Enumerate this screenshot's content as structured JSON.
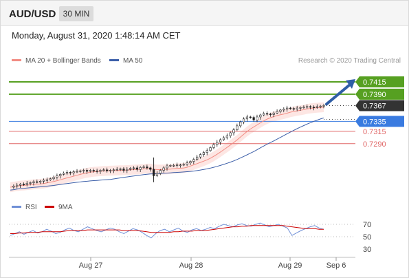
{
  "header": {
    "pair": "AUD/USD",
    "interval": "30 MIN"
  },
  "timestamp": "Monday, August 31, 2020 1:48:14 AM CET",
  "legend": {
    "ma20": {
      "label": "MA 20 + Bollinger Bands",
      "color": "#f28b82"
    },
    "ma50": {
      "label": "MA 50",
      "color": "#3b5ea8"
    },
    "credit": "Research © 2020 Trading Central"
  },
  "rsi_legend": {
    "rsi": {
      "label": "RSI",
      "color": "#6f8fd6"
    },
    "ma9": {
      "label": "9MA",
      "color": "#cc0000"
    }
  },
  "colors": {
    "resistance": "#56a021",
    "support": "#3a7be0",
    "support_dashed": "#e06666",
    "current": "#333333",
    "arrow": "#2f5ea6",
    "candle": "#1f1f1f",
    "band": "#fde3e0"
  },
  "chart_data": [
    {
      "type": "candlestick",
      "ylim": [
        0.7195,
        0.744
      ],
      "x_ticks": [
        "Aug 27",
        "Aug 28",
        "Aug 29",
        "Sep 6"
      ],
      "levels": [
        {
          "label": "0.7415",
          "value": 0.7415,
          "kind": "resistance"
        },
        {
          "label": "0.7390",
          "value": 0.739,
          "kind": "resistance"
        },
        {
          "label": "0.7367",
          "value": 0.7367,
          "kind": "current"
        },
        {
          "label": "0.7335",
          "value": 0.7335,
          "kind": "pivot"
        },
        {
          "label": "0.7315",
          "value": 0.7315,
          "kind": "support"
        },
        {
          "label": "0.7290",
          "value": 0.729,
          "kind": "support"
        }
      ],
      "price_series": [
        0.7202,
        0.7204,
        0.7206,
        0.7208,
        0.7207,
        0.721,
        0.7211,
        0.7213,
        0.7212,
        0.7214,
        0.7216,
        0.7217,
        0.7219,
        0.7222,
        0.7225,
        0.7228,
        0.723,
        0.7232,
        0.7231,
        0.7233,
        0.7234,
        0.7235,
        0.7236,
        0.7234,
        0.7236,
        0.7235,
        0.7234,
        0.7236,
        0.7237,
        0.7235,
        0.7236,
        0.7237,
        0.7238,
        0.7239,
        0.7236,
        0.7238,
        0.724,
        0.7241,
        0.7238,
        0.7242,
        0.7243,
        0.7241,
        0.7238,
        0.7225,
        0.723,
        0.7236,
        0.7241,
        0.7245,
        0.7246,
        0.7246,
        0.7247,
        0.7247,
        0.7248,
        0.7251,
        0.7254,
        0.7258,
        0.7263,
        0.7268,
        0.7272,
        0.7276,
        0.7282,
        0.7288,
        0.7293,
        0.7298,
        0.7302,
        0.7306,
        0.7312,
        0.7318,
        0.7326,
        0.7334,
        0.734,
        0.7344,
        0.7343,
        0.7338,
        0.7344,
        0.7348,
        0.7351,
        0.735,
        0.7349,
        0.7352,
        0.7355,
        0.7358,
        0.736,
        0.7362,
        0.7361,
        0.736,
        0.7362,
        0.7363,
        0.7364,
        0.7365,
        0.7364,
        0.7363,
        0.7365,
        0.7366,
        0.7367
      ],
      "arrow": {
        "from": 0.737,
        "to": 0.7415
      }
    },
    {
      "type": "line",
      "title": "RSI",
      "y_ticks": [
        70,
        50,
        30
      ],
      "ylim": [
        20,
        80
      ],
      "series": [
        {
          "name": "RSI",
          "values": [
            52,
            55,
            58,
            54,
            57,
            60,
            56,
            58,
            62,
            59,
            55,
            57,
            61,
            64,
            60,
            58,
            62,
            66,
            63,
            60,
            58,
            61,
            64,
            62,
            58,
            55,
            59,
            63,
            61,
            57,
            52,
            48,
            55,
            60,
            62,
            58,
            61,
            64,
            59,
            57,
            61,
            63,
            60,
            62,
            65,
            63,
            67,
            70,
            68,
            66,
            69,
            71,
            68,
            67,
            70,
            72,
            69,
            66,
            68,
            70,
            67,
            64,
            52,
            56,
            60,
            63,
            66,
            68,
            64,
            62
          ]
        },
        {
          "name": "9MA",
          "values": [
            55,
            55,
            56,
            56,
            57,
            57,
            57,
            58,
            58,
            58,
            58,
            58,
            59,
            60,
            60,
            60,
            60,
            61,
            61,
            61,
            61,
            61,
            61,
            61,
            61,
            60,
            60,
            60,
            60,
            59,
            58,
            57,
            57,
            57,
            57,
            57,
            58,
            58,
            59,
            59,
            59,
            60,
            60,
            60,
            61,
            62,
            63,
            64,
            65,
            66,
            66,
            67,
            67,
            68,
            68,
            68,
            68,
            68,
            68,
            68,
            68,
            67,
            66,
            65,
            64,
            63,
            63,
            63,
            62,
            62
          ]
        }
      ]
    }
  ]
}
